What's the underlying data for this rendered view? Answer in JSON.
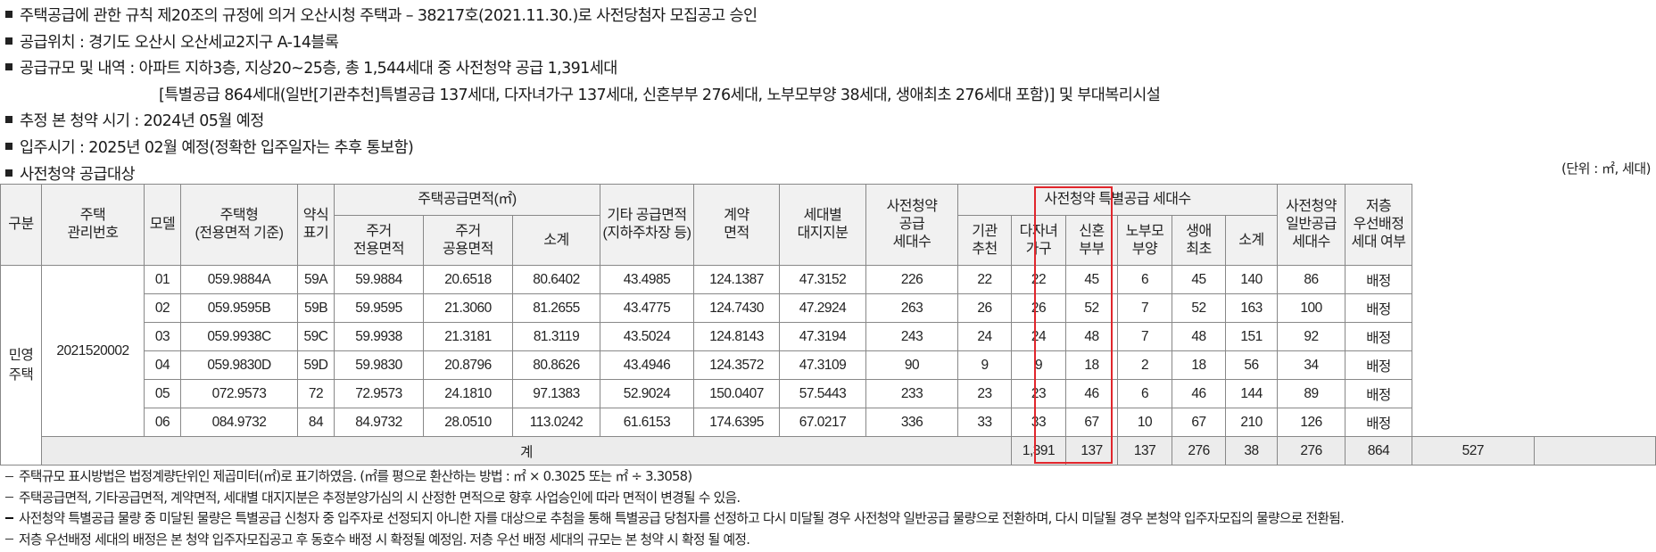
{
  "bullets": [
    "주택공급에 관한 규칙 제20조의 규정에 의거 오산시청 주택과 – 38217호(2021.11.30.)로 사전당첨자 모집공고 승인",
    "공급위치 : 경기도 오산시 오산세교2지구 A-14블록",
    "공급규모 및 내역 : 아파트 지하3층, 지상20~25층, 총 1,544세대 중 사전청약 공급 1,391세대",
    "[특별공급 864세대(일반[기관추천]특별공급 137세대, 다자녀가구 137세대, 신혼부부 276세대, 노부모부양 38세대, 생애최초 276세대 포함)] 및 부대복리시설",
    "추정 본 청약 시기 : 2024년 05월 예정",
    "입주시기 : 2025년 02월 예정(정확한 입주일자는 추후 통보함)",
    "사전청약 공급대상"
  ],
  "unit_note": "(단위 : ㎡, 세대)",
  "table": {
    "headers": {
      "division": "구분",
      "mgmt_no": "주택\n관리번호",
      "model": "모델",
      "type": "주택형\n(전용면적 기준)",
      "abbr": "약식\n표기",
      "supply_area_group": "주택공급면적(㎡)",
      "exclusive": "주거\n전용면적",
      "common": "주거\n공용면적",
      "subtotal": "소계",
      "other_area": "기타 공급면적\n(지하주차장 등)",
      "contract_area": "계약\n면적",
      "land_share": "세대별\n대지지분",
      "presale_units": "사전청약\n공급\n세대수",
      "special_group": "사전청약 특별공급 세대수",
      "institution": "기관\n추천",
      "multi_child": "다자녀\n가구",
      "newlywed": "신혼\n부부",
      "elderly": "노부모\n부양",
      "first_time": "생애\n최초",
      "special_subtotal": "소계",
      "general_units": "사전청약\n일반공급\n세대수",
      "low_floor": "저층\n우선배정\n세대 여부"
    },
    "division_value": "민영\n주택",
    "mgmt_no_value": "2021520002",
    "rows": [
      {
        "model": "01",
        "type": "059.9884A",
        "abbr": "59A",
        "exclusive": "59.9884",
        "common": "20.6518",
        "subtotal": "80.6402",
        "other": "43.4985",
        "contract": "124.1387",
        "land": "47.3152",
        "presale": "226",
        "inst": "22",
        "multi": "22",
        "newly": "45",
        "elder": "6",
        "first": "45",
        "sp_sub": "140",
        "general": "86",
        "low": "배정"
      },
      {
        "model": "02",
        "type": "059.9595B",
        "abbr": "59B",
        "exclusive": "59.9595",
        "common": "21.3060",
        "subtotal": "81.2655",
        "other": "43.4775",
        "contract": "124.7430",
        "land": "47.2924",
        "presale": "263",
        "inst": "26",
        "multi": "26",
        "newly": "52",
        "elder": "7",
        "first": "52",
        "sp_sub": "163",
        "general": "100",
        "low": "배정"
      },
      {
        "model": "03",
        "type": "059.9938C",
        "abbr": "59C",
        "exclusive": "59.9938",
        "common": "21.3181",
        "subtotal": "81.3119",
        "other": "43.5024",
        "contract": "124.8143",
        "land": "47.3194",
        "presale": "243",
        "inst": "24",
        "multi": "24",
        "newly": "48",
        "elder": "7",
        "first": "48",
        "sp_sub": "151",
        "general": "92",
        "low": "배정"
      },
      {
        "model": "04",
        "type": "059.9830D",
        "abbr": "59D",
        "exclusive": "59.9830",
        "common": "20.8796",
        "subtotal": "80.8626",
        "other": "43.4946",
        "contract": "124.3572",
        "land": "47.3109",
        "presale": "90",
        "inst": "9",
        "multi": "9",
        "newly": "18",
        "elder": "2",
        "first": "18",
        "sp_sub": "56",
        "general": "34",
        "low": "배정"
      },
      {
        "model": "05",
        "type": "072.9573",
        "abbr": "72",
        "exclusive": "72.9573",
        "common": "24.1810",
        "subtotal": "97.1383",
        "other": "52.9024",
        "contract": "150.0407",
        "land": "57.5443",
        "presale": "233",
        "inst": "23",
        "multi": "23",
        "newly": "46",
        "elder": "6",
        "first": "46",
        "sp_sub": "144",
        "general": "89",
        "low": "배정"
      },
      {
        "model": "06",
        "type": "084.9732",
        "abbr": "84",
        "exclusive": "84.9732",
        "common": "28.0510",
        "subtotal": "113.0242",
        "other": "61.6153",
        "contract": "174.6395",
        "land": "67.0217",
        "presale": "336",
        "inst": "33",
        "multi": "33",
        "newly": "67",
        "elder": "10",
        "first": "67",
        "sp_sub": "210",
        "general": "126",
        "low": "배정"
      }
    ],
    "total": {
      "label": "계",
      "presale": "1,391",
      "inst": "137",
      "multi": "137",
      "newly": "276",
      "elder": "38",
      "first": "276",
      "sp_sub": "864",
      "general": "527",
      "low": ""
    }
  },
  "notes": [
    "주택규모 표시방법은 법정계량단위인 제곱미터(㎡)로 표기하였음. (㎡를 평으로 환산하는 방법 : ㎡ × 0.3025 또는 ㎡ ÷ 3.3058)",
    "주택공급면적, 기타공급면적, 계약면적, 세대별 대지지분은 추정분양가심의 시 산정한 면적으로 향후 사업승인에 따라 면적이 변경될 수 있음.",
    "사전청약 특별공급 물량 중 미달된 물량은 특별공급 신청자 중 입주자로 선정되지 아니한 자를 대상으로 추첨을 통해 특별공급 당첨자를 선정하고 다시 미달될 경우 사전청약 일반공급 물량으로 전환하며, 다시 미달될 경우 본청약 입주자모집의 물량으로 전환됨.",
    "저층 우선배정 세대의 배정은 본 청약 입주자모집공고 후 동호수 배정 시 확정될 예정임. 저층 우선 배정 세대의 규모는 본 청약 시 확정 될 예정."
  ],
  "colors": {
    "highlight": "#e1262c",
    "header_bg": "#f1f1f1",
    "total_bg": "#ececec"
  }
}
